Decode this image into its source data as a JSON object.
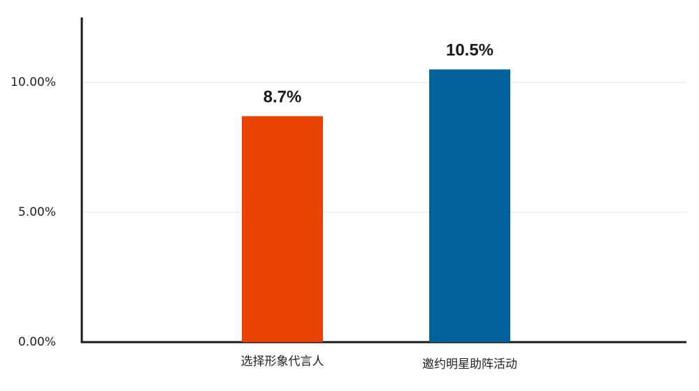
{
  "chart_data": {
    "type": "bar",
    "categories": [
      "选择形象代言人",
      "邀约明星助阵活动"
    ],
    "values": [
      8.7,
      10.5
    ],
    "value_labels": [
      "8.7%",
      "10.5%"
    ],
    "colors": [
      "#ea4200",
      "#02639c"
    ],
    "ylim": [
      0,
      12.5
    ],
    "yticks": [
      {
        "value": 0,
        "label": "0.00%"
      },
      {
        "value": 5,
        "label": "5.00%"
      },
      {
        "value": 10,
        "label": "10.00%"
      }
    ],
    "grid": true
  }
}
